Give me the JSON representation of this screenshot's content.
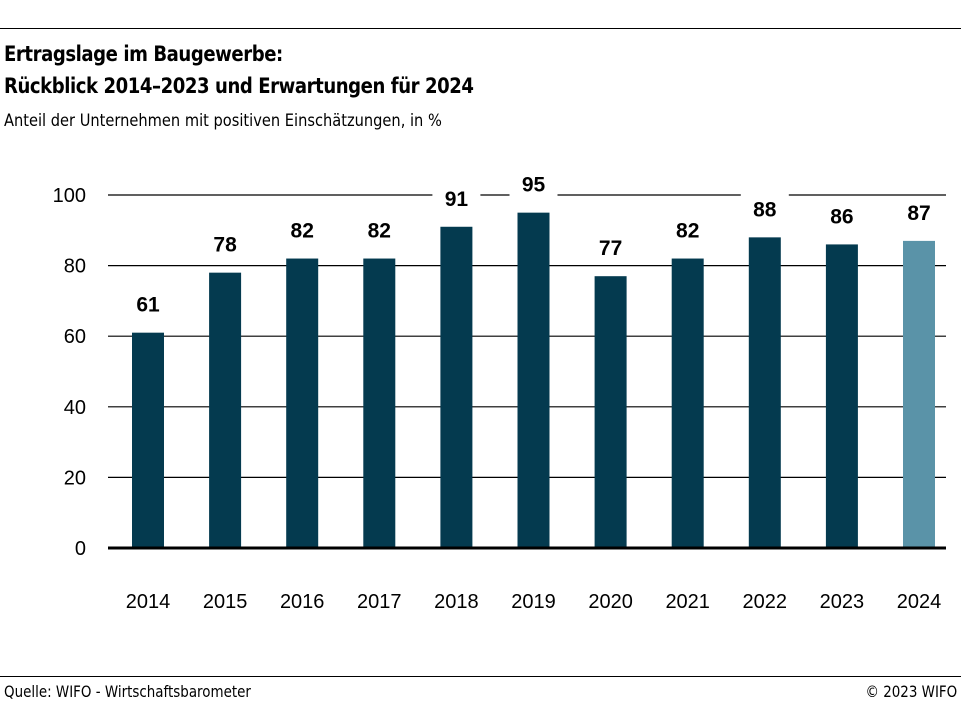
{
  "header": {
    "title_line1": "Ertragslage im Baugewerbe:",
    "title_line2": "Rückblick 2014–2023 und Erwartungen für 2024",
    "subtitle": "Anteil der Unternehmen mit positiven Einschätzungen, in %"
  },
  "footer": {
    "source": "Quelle: WIFO - Wirtschaftsbarometer",
    "copyright": "© 2023 WIFO"
  },
  "colors": {
    "actual": "#043a4f",
    "expectation": "#5a93a8"
  },
  "chart_data": {
    "type": "bar",
    "title": "Ertragslage im Baugewerbe: Rückblick 2014–2023 und Erwartungen für 2024",
    "subtitle": "Anteil der Unternehmen mit positiven Einschätzungen, in %",
    "xlabel": "",
    "ylabel": "",
    "categories": [
      "2014",
      "2015",
      "2016",
      "2017",
      "2018",
      "2019",
      "2020",
      "2021",
      "2022",
      "2023",
      "2024"
    ],
    "values": [
      61,
      78,
      82,
      82,
      91,
      95,
      77,
      82,
      88,
      86,
      87
    ],
    "bar_kind": [
      "actual",
      "actual",
      "actual",
      "actual",
      "actual",
      "actual",
      "actual",
      "actual",
      "actual",
      "actual",
      "expectation"
    ],
    "ylim": [
      0,
      100
    ],
    "yticks": [
      0,
      20,
      40,
      60,
      80,
      100
    ],
    "grid": true,
    "data_labels": true,
    "legend": "none"
  }
}
